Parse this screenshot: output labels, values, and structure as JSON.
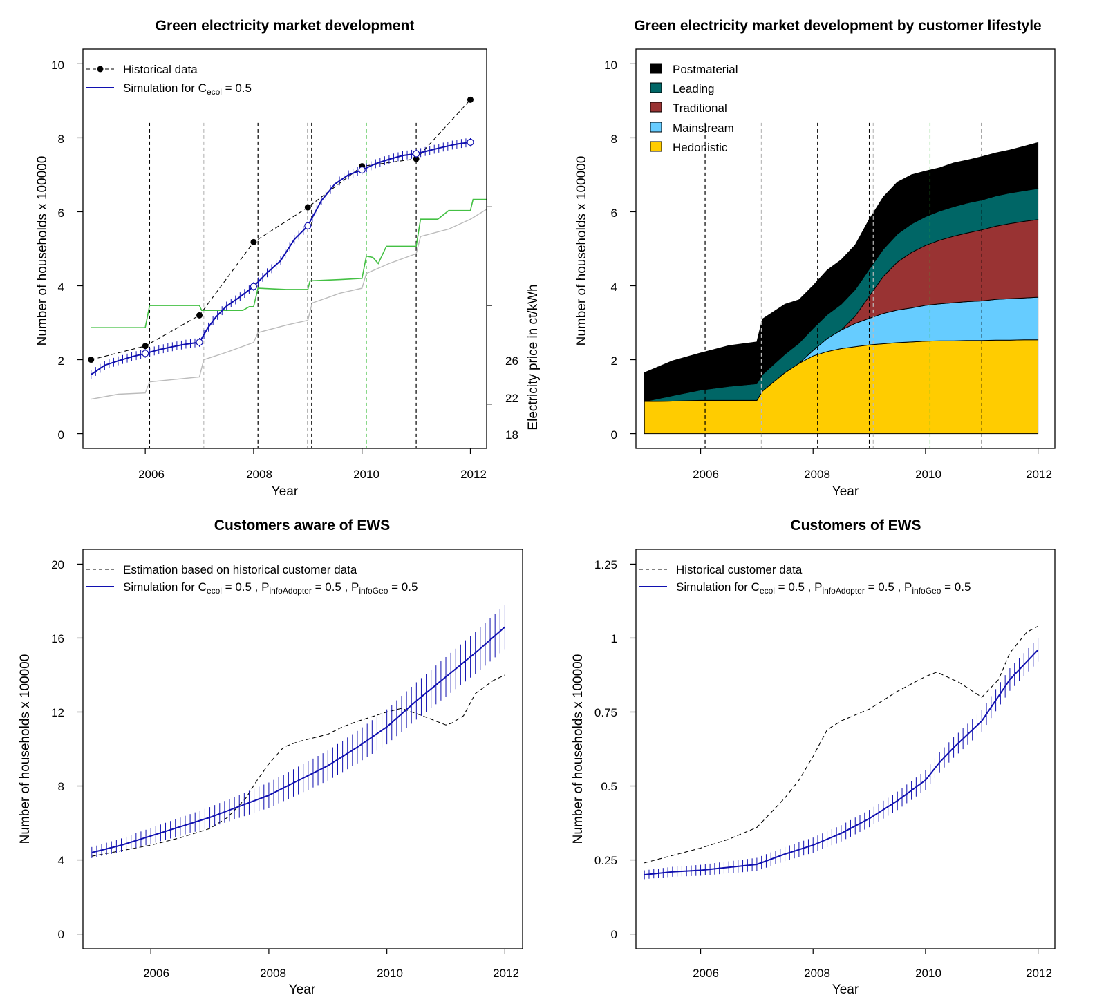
{
  "chart_data": [
    {
      "type": "line",
      "title": "Green electricity market development",
      "xlabel": "Year",
      "ylabel": "Number of households x 100000",
      "y2label": "Electricity price in ct/kWh",
      "xlim": [
        2004.85,
        2012.3
      ],
      "ylim": [
        -0.4,
        10.4
      ],
      "y2lim": [
        16.2,
        32.4
      ],
      "xticks": [
        "2006",
        "2008",
        "2010",
        "2012"
      ],
      "yticks": [
        "0",
        "2",
        "4",
        "6",
        "8",
        "10"
      ],
      "y2ticks": [
        "18",
        "22",
        "26"
      ],
      "legend_position": "top-left",
      "legend": [
        {
          "label": "Historical data"
        },
        {
          "label": "Simulation for C",
          "sub": "ecol",
          "suffix": " = 0.5"
        }
      ],
      "colors": {
        "historical": "#000000",
        "simulation": "#1010B0",
        "price_green": "#44C044",
        "price_gray": "#BBBBBB",
        "vline_black": "#000000",
        "vline_gray": "#BBBBBB",
        "vline_green": "#33BB33"
      },
      "series": [
        {
          "name": "Historical data",
          "x": [
            2005,
            2006,
            2007,
            2008,
            2009,
            2010,
            2011,
            2012
          ],
          "y": [
            2.0,
            2.37,
            3.2,
            5.18,
            6.12,
            7.23,
            7.43,
            9.03
          ],
          "axis": "left"
        },
        {
          "name": "Simulation for C ecol = 0.5",
          "x": [
            2005,
            2005.25,
            2005.5,
            2005.75,
            2006,
            2006.25,
            2006.5,
            2006.75,
            2007,
            2007.15,
            2007.3,
            2007.5,
            2007.75,
            2008,
            2008.25,
            2008.5,
            2008.75,
            2009,
            2009.25,
            2009.5,
            2009.75,
            2010,
            2010.25,
            2010.5,
            2010.75,
            2011,
            2011.25,
            2011.5,
            2011.75,
            2012
          ],
          "y": [
            1.6,
            1.85,
            1.97,
            2.08,
            2.17,
            2.27,
            2.35,
            2.42,
            2.47,
            2.85,
            3.15,
            3.45,
            3.7,
            3.98,
            4.35,
            4.68,
            5.25,
            5.62,
            6.3,
            6.75,
            7.0,
            7.13,
            7.3,
            7.42,
            7.52,
            7.57,
            7.66,
            7.75,
            7.83,
            7.88
          ],
          "markers_x": [
            2006,
            2007,
            2008,
            2009,
            2010,
            2011,
            2012
          ],
          "axis": "left"
        },
        {
          "name": "green price",
          "x": [
            2005,
            2006,
            2006.08,
            2007,
            2007.04,
            2007.8,
            2007.92,
            2008,
            2008.08,
            2008.6,
            2009,
            2009.04,
            2009.6,
            2010,
            2010.08,
            2010.2,
            2010.3,
            2010.45,
            2011,
            2011.08,
            2011.4,
            2011.6,
            2012,
            2012.05,
            2012.3
          ],
          "y": [
            21.1,
            21.1,
            22.0,
            22.0,
            21.8,
            21.8,
            21.95,
            21.95,
            22.7,
            22.65,
            22.65,
            23.0,
            23.05,
            23.1,
            24.0,
            23.95,
            23.7,
            24.4,
            24.4,
            25.5,
            25.5,
            25.85,
            25.85,
            26.3,
            26.3
          ],
          "axis": "right"
        },
        {
          "name": "gray price",
          "x": [
            2005,
            2005.5,
            2006,
            2006.08,
            2007,
            2007.08,
            2007.5,
            2008,
            2008.08,
            2008.6,
            2009,
            2009.08,
            2009.6,
            2010,
            2010.08,
            2010.5,
            2011,
            2011.08,
            2011.6,
            2012,
            2012.3
          ],
          "y": [
            18.2,
            18.4,
            18.45,
            18.9,
            19.1,
            19.8,
            20.1,
            20.5,
            20.9,
            21.2,
            21.4,
            22.1,
            22.5,
            22.7,
            23.3,
            23.7,
            24.1,
            24.8,
            25.1,
            25.5,
            25.9
          ],
          "axis": "right"
        }
      ],
      "vlines": [
        {
          "x": 2006.08,
          "color": "black"
        },
        {
          "x": 2007.08,
          "color": "gray"
        },
        {
          "x": 2008.08,
          "color": "black"
        },
        {
          "x": 2009.0,
          "color": "black"
        },
        {
          "x": 2009.07,
          "color": "black"
        },
        {
          "x": 2010.08,
          "color": "green"
        },
        {
          "x": 2011.0,
          "color": "black"
        }
      ]
    },
    {
      "type": "area",
      "title": "Green electricity market development by customer lifestyle",
      "xlabel": "Year",
      "ylabel": "Number of households x 100000",
      "xlim": [
        2004.85,
        2012.3
      ],
      "ylim": [
        -0.4,
        10.4
      ],
      "xticks": [
        "2006",
        "2008",
        "2010",
        "2012"
      ],
      "yticks": [
        "0",
        "2",
        "4",
        "6",
        "8",
        "10"
      ],
      "legend_position": "top-left",
      "legend": [
        "Postmaterial",
        "Leading",
        "Traditional",
        "Mainstream",
        "Hedonistic"
      ],
      "colors": {
        "Postmaterial": "#000000",
        "Leading": "#006666",
        "Traditional": "#993333",
        "Mainstream": "#66CCFF",
        "Hedonistic": "#FFCC00"
      },
      "x": [
        2005,
        2005.5,
        2006,
        2006.5,
        2007,
        2007.1,
        2007.5,
        2007.75,
        2008,
        2008.25,
        2008.5,
        2008.75,
        2009,
        2009.25,
        2009.5,
        2009.75,
        2010,
        2010.25,
        2010.5,
        2010.75,
        2011,
        2011.25,
        2011.5,
        2011.75,
        2012
      ],
      "series": [
        {
          "name": "Hedonistic",
          "values": [
            0.87,
            0.88,
            0.9,
            0.9,
            0.9,
            1.15,
            1.65,
            1.9,
            2.1,
            2.22,
            2.3,
            2.35,
            2.4,
            2.43,
            2.46,
            2.48,
            2.5,
            2.51,
            2.51,
            2.52,
            2.52,
            2.53,
            2.53,
            2.54,
            2.54
          ]
        },
        {
          "name": "Mainstream",
          "values": [
            0.0,
            0.0,
            0.0,
            0.0,
            0.0,
            0.0,
            0.0,
            0.0,
            0.15,
            0.35,
            0.5,
            0.63,
            0.72,
            0.82,
            0.88,
            0.92,
            0.97,
            1.0,
            1.03,
            1.05,
            1.07,
            1.1,
            1.12,
            1.13,
            1.15
          ]
        },
        {
          "name": "Traditional",
          "values": [
            0.0,
            0.0,
            0.0,
            0.0,
            0.0,
            0.0,
            0.0,
            0.0,
            0.0,
            0.0,
            0.0,
            0.2,
            0.6,
            1.0,
            1.3,
            1.5,
            1.62,
            1.72,
            1.8,
            1.86,
            1.92,
            1.98,
            2.03,
            2.07,
            2.1
          ]
        },
        {
          "name": "Leading",
          "values": [
            0.0,
            0.15,
            0.28,
            0.38,
            0.45,
            0.45,
            0.5,
            0.55,
            0.6,
            0.65,
            0.7,
            0.72,
            0.73,
            0.74,
            0.76,
            0.77,
            0.78,
            0.79,
            0.8,
            0.81,
            0.81,
            0.82,
            0.83,
            0.83,
            0.84
          ]
        },
        {
          "name": "Postmaterial",
          "values": [
            0.78,
            0.94,
            1.0,
            1.1,
            1.13,
            1.5,
            1.35,
            1.17,
            1.15,
            1.2,
            1.2,
            1.2,
            1.35,
            1.41,
            1.4,
            1.33,
            1.23,
            1.17,
            1.18,
            1.16,
            1.17,
            1.16,
            1.16,
            1.2,
            1.24
          ]
        }
      ],
      "vlines": [
        {
          "x": 2006.08,
          "color": "black"
        },
        {
          "x": 2007.08,
          "color": "gray"
        },
        {
          "x": 2008.08,
          "color": "black"
        },
        {
          "x": 2009.0,
          "color": "black"
        },
        {
          "x": 2009.07,
          "color": "gray"
        },
        {
          "x": 2010.08,
          "color": "green"
        },
        {
          "x": 2011.0,
          "color": "black"
        }
      ]
    },
    {
      "type": "line",
      "title": "Customers aware of EWS",
      "xlabel": "Year",
      "ylabel": "Number of households x 100000",
      "xlim": [
        2004.85,
        2012.3
      ],
      "ylim": [
        -0.8,
        20.8
      ],
      "xticks": [
        "2006",
        "2008",
        "2010",
        "2012"
      ],
      "yticks": [
        "0",
        "4",
        "8",
        "12",
        "16",
        "20"
      ],
      "legend_position": "top-left",
      "legend": [
        {
          "label": "Estimation based on historical customer data"
        },
        {
          "label": "Simulation for C",
          "subs": [
            "ecol",
            "infoAdopter",
            "infoGeo"
          ],
          "parts": [
            "Simulation for C",
            " = 0.5 , P",
            " = 0.5 , P",
            " = 0.5"
          ]
        }
      ],
      "colors": {
        "historical": "#000000",
        "simulation": "#1010B0"
      },
      "series": [
        {
          "name": "Estimation based on historical customer data",
          "x": [
            2005,
            2005.5,
            2006,
            2006.5,
            2007,
            2007.3,
            2007.6,
            2007.8,
            2008,
            2008.25,
            2008.5,
            2009,
            2009.25,
            2009.5,
            2010,
            2010.25,
            2010.6,
            2011,
            2011.1,
            2011.3,
            2011.5,
            2011.8,
            2012
          ],
          "y": [
            4.2,
            4.5,
            4.8,
            5.2,
            5.7,
            6.3,
            7.3,
            8.3,
            9.2,
            10.1,
            10.4,
            10.8,
            11.2,
            11.5,
            12.0,
            12.2,
            11.8,
            11.3,
            11.4,
            11.8,
            13.0,
            13.7,
            14.0
          ]
        },
        {
          "name": "Simulation for C ecol = 0.5 , P infoAdopter = 0.5 , P infoGeo = 0.5",
          "x": [
            2005,
            2005.5,
            2006,
            2006.5,
            2007,
            2007.5,
            2008,
            2008.5,
            2009,
            2009.5,
            2010,
            2010.5,
            2011,
            2011.5,
            2012
          ],
          "y": [
            4.4,
            4.8,
            5.3,
            5.8,
            6.3,
            6.9,
            7.5,
            8.3,
            9.1,
            10.1,
            11.2,
            12.6,
            13.9,
            15.2,
            16.6
          ],
          "error_half_width_start": 0.3,
          "error_half_width_end": 1.2
        }
      ]
    },
    {
      "type": "line",
      "title": "Customers of EWS",
      "xlabel": "Year",
      "ylabel": "Number of households x 100000",
      "xlim": [
        2004.85,
        2012.3
      ],
      "ylim": [
        -0.05,
        1.3
      ],
      "xticks": [
        "2006",
        "2008",
        "2010",
        "2012"
      ],
      "yticks": [
        "0",
        "0.25",
        "0.5",
        "0.75",
        "1",
        "1.25"
      ],
      "legend_position": "top-left",
      "legend": [
        {
          "label": "Historical customer data"
        },
        {
          "label": "Simulation for C",
          "subs": [
            "ecol",
            "infoAdopter",
            "infoGeo"
          ],
          "parts": [
            "Simulation for C",
            " = 0.5 , P",
            " = 0.5 , P",
            " = 0.5"
          ]
        }
      ],
      "colors": {
        "historical": "#000000",
        "simulation": "#1010B0"
      },
      "series": [
        {
          "name": "Historical customer data",
          "x": [
            2005,
            2005.5,
            2006,
            2006.5,
            2007,
            2007.5,
            2007.75,
            2008,
            2008.25,
            2008.5,
            2009,
            2009.25,
            2009.5,
            2010,
            2010.2,
            2010.6,
            2011,
            2011.1,
            2011.3,
            2011.5,
            2011.8,
            2012
          ],
          "y": [
            0.24,
            0.265,
            0.29,
            0.32,
            0.36,
            0.46,
            0.52,
            0.6,
            0.69,
            0.72,
            0.76,
            0.79,
            0.82,
            0.87,
            0.885,
            0.85,
            0.8,
            0.82,
            0.86,
            0.95,
            1.02,
            1.04
          ]
        },
        {
          "name": "Simulation for C ecol = 0.5 , P infoAdopter = 0.5 , P infoGeo = 0.5",
          "x": [
            2005,
            2005.5,
            2006,
            2006.5,
            2007,
            2007.5,
            2008,
            2008.5,
            2009,
            2009.5,
            2010,
            2010.25,
            2010.5,
            2011,
            2011.5,
            2012
          ],
          "y": [
            0.2,
            0.21,
            0.215,
            0.225,
            0.235,
            0.27,
            0.3,
            0.34,
            0.39,
            0.45,
            0.52,
            0.58,
            0.63,
            0.72,
            0.86,
            0.96
          ],
          "error_half_width_start": 0.015,
          "error_half_width_end": 0.04
        }
      ]
    }
  ]
}
